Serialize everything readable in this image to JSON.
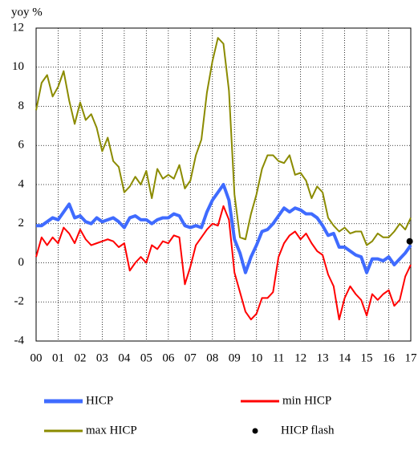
{
  "chart_data": {
    "type": "line",
    "y_axis_label": "yoy %",
    "x": [
      0,
      0.25,
      0.5,
      0.75,
      1,
      1.25,
      1.5,
      1.75,
      2,
      2.25,
      2.5,
      2.75,
      3,
      3.25,
      3.5,
      3.75,
      4,
      4.25,
      4.5,
      4.75,
      5,
      5.25,
      5.5,
      5.75,
      6,
      6.25,
      6.5,
      6.75,
      7,
      7.25,
      7.5,
      7.75,
      8,
      8.25,
      8.5,
      8.75,
      9,
      9.25,
      9.5,
      9.75,
      10,
      10.25,
      10.5,
      10.75,
      11,
      11.25,
      11.5,
      11.75,
      12,
      12.25,
      12.5,
      12.75,
      13,
      13.25,
      13.5,
      13.75,
      14,
      14.25,
      14.5,
      14.75,
      15,
      15.25,
      15.5,
      15.75,
      16,
      16.25,
      16.5,
      16.75,
      17
    ],
    "series": [
      {
        "name": "HICP",
        "color": "#3f6bff",
        "width": 4,
        "values": [
          1.9,
          1.9,
          2.1,
          2.3,
          2.2,
          2.6,
          3.0,
          2.3,
          2.4,
          2.1,
          2.0,
          2.3,
          2.1,
          2.2,
          2.3,
          2.1,
          1.8,
          2.3,
          2.4,
          2.2,
          2.2,
          2.0,
          2.2,
          2.3,
          2.3,
          2.5,
          2.4,
          1.9,
          1.8,
          1.9,
          1.8,
          2.6,
          3.2,
          3.6,
          4.0,
          3.2,
          1.2,
          0.5,
          -0.5,
          0.3,
          0.9,
          1.6,
          1.7,
          2.0,
          2.4,
          2.8,
          2.6,
          2.8,
          2.7,
          2.5,
          2.5,
          2.3,
          1.9,
          1.4,
          1.5,
          0.8,
          0.8,
          0.6,
          0.4,
          0.3,
          -0.5,
          0.2,
          0.2,
          0.1,
          0.3,
          -0.1,
          0.2,
          0.5,
          0.9
        ]
      },
      {
        "name": "min HICP",
        "color": "#ff0000",
        "width": 2,
        "values": [
          0.3,
          1.3,
          0.9,
          1.3,
          1.0,
          1.8,
          1.5,
          1.0,
          1.7,
          1.2,
          0.9,
          1.0,
          1.1,
          1.2,
          1.1,
          0.8,
          1.0,
          -0.4,
          0.0,
          0.3,
          0.0,
          0.9,
          0.7,
          1.1,
          1.0,
          1.4,
          1.3,
          -1.1,
          -0.2,
          0.9,
          1.3,
          1.7,
          2.0,
          1.9,
          2.9,
          2.2,
          -0.5,
          -1.5,
          -2.5,
          -2.9,
          -2.6,
          -1.8,
          -1.8,
          -1.5,
          0.3,
          1.0,
          1.4,
          1.6,
          1.2,
          1.5,
          1.0,
          0.6,
          0.4,
          -0.6,
          -1.2,
          -2.9,
          -1.8,
          -1.2,
          -1.6,
          -1.9,
          -2.7,
          -1.6,
          -1.9,
          -1.6,
          -1.4,
          -2.2,
          -1.9,
          -0.7,
          -0.1
        ]
      },
      {
        "name": "max HICP",
        "color": "#8b8b00",
        "width": 2,
        "values": [
          7.8,
          9.2,
          9.6,
          8.5,
          9.0,
          9.8,
          8.3,
          7.1,
          8.2,
          7.3,
          7.6,
          6.9,
          5.7,
          6.4,
          5.2,
          4.9,
          3.6,
          3.9,
          4.4,
          4.0,
          4.7,
          3.3,
          4.8,
          4.3,
          4.5,
          4.3,
          5.0,
          3.8,
          4.2,
          5.5,
          6.3,
          8.7,
          10.3,
          11.5,
          11.2,
          8.8,
          3.5,
          1.3,
          1.2,
          2.5,
          3.5,
          4.8,
          5.5,
          5.5,
          5.2,
          5.1,
          5.5,
          4.5,
          4.6,
          4.2,
          3.3,
          3.9,
          3.6,
          2.3,
          1.9,
          1.6,
          1.8,
          1.5,
          1.6,
          1.6,
          0.9,
          1.1,
          1.5,
          1.3,
          1.3,
          1.6,
          2.0,
          1.7,
          2.3
        ]
      },
      {
        "name": "HICP flash",
        "color": "#000000",
        "type": "scatter",
        "x": [
          16.95
        ],
        "values": [
          1.1
        ]
      }
    ],
    "xlim": [
      0,
      17
    ],
    "xticks": [
      {
        "value": 0,
        "label": "00"
      },
      {
        "value": 1,
        "label": "01"
      },
      {
        "value": 2,
        "label": "02"
      },
      {
        "value": 3,
        "label": "03"
      },
      {
        "value": 4,
        "label": "04"
      },
      {
        "value": 5,
        "label": "05"
      },
      {
        "value": 6,
        "label": "06"
      },
      {
        "value": 7,
        "label": "07"
      },
      {
        "value": 8,
        "label": "08"
      },
      {
        "value": 9,
        "label": "09"
      },
      {
        "value": 10,
        "label": "10"
      },
      {
        "value": 11,
        "label": "11"
      },
      {
        "value": 12,
        "label": "12"
      },
      {
        "value": 13,
        "label": "13"
      },
      {
        "value": 14,
        "label": "14"
      },
      {
        "value": 15,
        "label": "15"
      },
      {
        "value": 16,
        "label": "16"
      },
      {
        "value": 17,
        "label": "17"
      }
    ],
    "ylim": [
      -4,
      12
    ],
    "yticks": [
      -4,
      -2,
      0,
      2,
      4,
      6,
      8,
      10,
      12
    ],
    "grid": true
  }
}
